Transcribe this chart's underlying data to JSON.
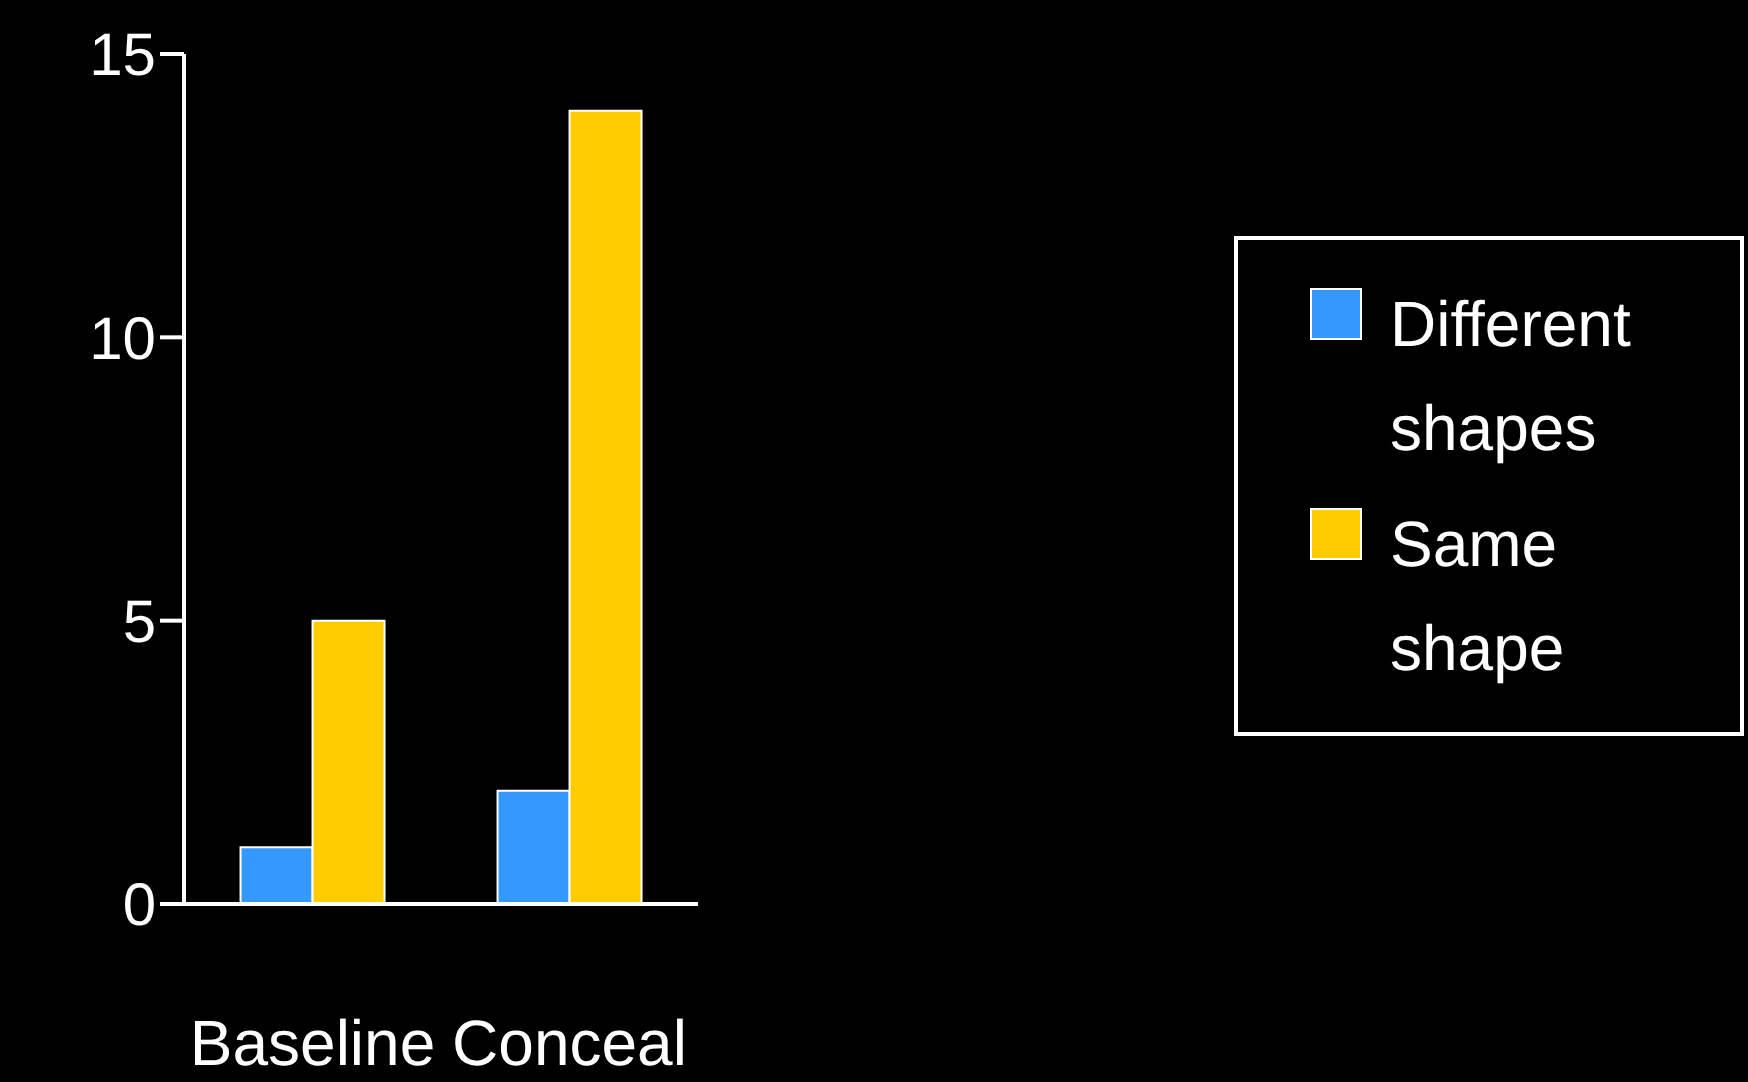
{
  "chart_data": {
    "type": "bar",
    "categories": [
      "Baseline",
      "Conceal"
    ],
    "series": [
      {
        "name": "Different shapes",
        "color": "#3399ff",
        "values": [
          1,
          2
        ]
      },
      {
        "name": "Same shape",
        "color": "#ffcc00",
        "values": [
          5,
          14
        ]
      }
    ],
    "ylim": [
      0,
      15
    ],
    "yticks": [
      0,
      5,
      10,
      15
    ],
    "grid": false,
    "legend": "right"
  }
}
